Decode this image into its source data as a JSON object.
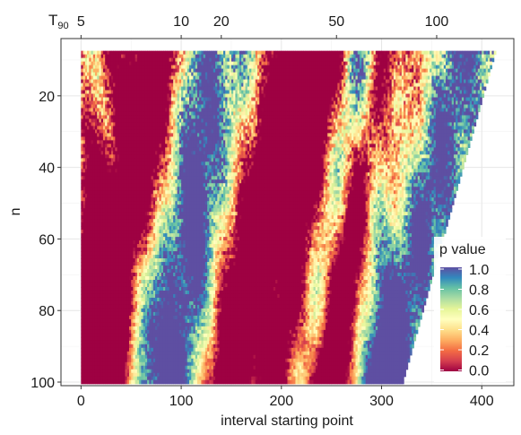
{
  "chart_data": {
    "type": "heatmap",
    "xlabel": "interval starting point",
    "ylabel": "n",
    "xlim": [
      -20,
      432
    ],
    "ylim": [
      101,
      4
    ],
    "x_ticks": [
      0,
      100,
      200,
      300,
      400
    ],
    "y_ticks": [
      20,
      40,
      60,
      80,
      100
    ],
    "top_axis": {
      "label_main": "T",
      "label_sub": "90",
      "ticks": [
        5,
        10,
        20,
        50,
        100
      ],
      "tick_positions": [
        0,
        100,
        140,
        255,
        355
      ]
    },
    "grid": true,
    "domain": {
      "x_start": 0,
      "x_end_at_top": 413,
      "x_end_at_bottom": 320,
      "n_min": 8,
      "n_max": 100
    },
    "legend": {
      "title": "p value",
      "placement": "right",
      "ticks": [
        "1.0",
        "0.8",
        "0.6",
        "0.4",
        "0.2",
        "0.0"
      ],
      "colors": [
        "#5E4FA2",
        "#3288BD",
        "#66C2A5",
        "#ABDDA4",
        "#E6F598",
        "#FFFFBF",
        "#FEE08B",
        "#FDAE61",
        "#F46D43",
        "#D53E4F",
        "#9E0142"
      ]
    },
    "low_p_bands": [
      {
        "x_at_top": 22,
        "x_at_bottom": 0,
        "width": 28
      },
      {
        "x_at_top": 72,
        "x_at_bottom": 18,
        "width": 26
      },
      {
        "x_at_top": 215,
        "x_at_bottom": 152,
        "width": 30
      },
      {
        "x_at_top": 250,
        "x_at_bottom": 195,
        "width": 18
      },
      {
        "x_at_top": 300,
        "x_at_bottom": 245,
        "width": 16
      }
    ],
    "high_p_bands": [
      {
        "x_at_top": 8,
        "x_at_bottom": 85,
        "width": 14
      },
      {
        "x_at_top": 115,
        "x_at_bottom": 110,
        "width": 22
      },
      {
        "x_at_top": 285,
        "x_at_bottom": 300,
        "width": 18
      },
      {
        "x_at_top": 375,
        "x_at_bottom": 300,
        "width": 20
      }
    ]
  }
}
